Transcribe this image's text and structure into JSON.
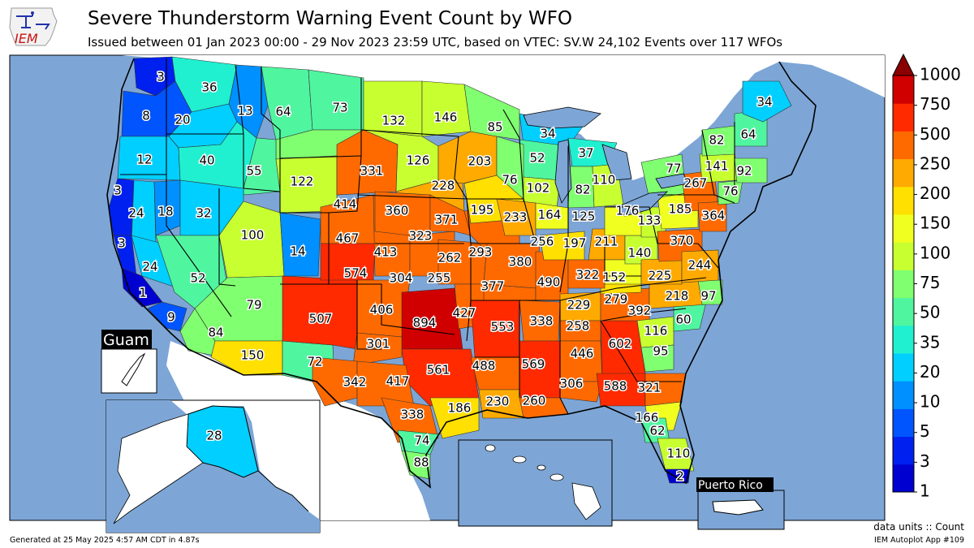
{
  "title": "Severe Thunderstorm Warning Event Count by WFO",
  "subtitle": "Issued between 01 Jan 2023 00:00 - 29 Nov 2023 23:59 UTC, based on VTEC: SV.W   24,102 Events over 117 WFOs",
  "logo_text": "IEM",
  "footer_left": "Generated at 25 May 2025 4:57 AM CDT in 4.87s",
  "footer_units": "data units :: Count",
  "footer_app": "IEM Autoplot App #109",
  "inset_labels": {
    "guam": "Guam",
    "puerto_rico": "Puerto Rico"
  },
  "colors": {
    "ocean": "#7da6d6",
    "land_outside": "#ffffff",
    "lake": "#7da6d6"
  },
  "colorbar": {
    "ticks": [
      "1",
      "3",
      "5",
      "10",
      "20",
      "35",
      "50",
      "75",
      "100",
      "150",
      "200",
      "250",
      "500",
      "750",
      "1000"
    ],
    "colors": [
      "#0000d0",
      "#0020f0",
      "#0055ff",
      "#0090ff",
      "#00cfff",
      "#20f0d0",
      "#50f5a0",
      "#80ff70",
      "#c8ff30",
      "#f0ff20",
      "#ffe000",
      "#ffaa00",
      "#ff6a00",
      "#ff2a00",
      "#d00000"
    ],
    "extend_color": "#8b0000"
  },
  "wfo_counts": [
    {
      "count": "3",
      "color": "#0020f0"
    },
    {
      "count": "36",
      "color": "#20f0d0"
    },
    {
      "count": "8",
      "color": "#0055ff"
    },
    {
      "count": "20",
      "color": "#00cfff"
    },
    {
      "count": "13",
      "color": "#0090ff"
    },
    {
      "count": "64",
      "color": "#50f5a0"
    },
    {
      "count": "73",
      "color": "#50f5a0"
    },
    {
      "count": "132",
      "color": "#c8ff30"
    },
    {
      "count": "146",
      "color": "#c8ff30"
    },
    {
      "count": "85",
      "color": "#80ff70"
    },
    {
      "count": "34",
      "color": "#00cfff"
    },
    {
      "count": "12",
      "color": "#0090ff"
    },
    {
      "count": "40",
      "color": "#20f0d0"
    },
    {
      "count": "55",
      "color": "#50f5a0"
    },
    {
      "count": "122",
      "color": "#c8ff30"
    },
    {
      "count": "331",
      "color": "#ff6a00"
    },
    {
      "count": "126",
      "color": "#c8ff30"
    },
    {
      "count": "203",
      "color": "#ffaa00"
    },
    {
      "count": "52",
      "color": "#50f5a0"
    },
    {
      "count": "37",
      "color": "#20f0d0"
    },
    {
      "count": "76",
      "color": "#80ff70"
    },
    {
      "count": "102",
      "color": "#c8ff30"
    },
    {
      "count": "82",
      "color": "#80ff70"
    },
    {
      "count": "110",
      "color": "#c8ff30"
    },
    {
      "count": "3",
      "color": "#0020f0"
    },
    {
      "count": "24",
      "color": "#00cfff"
    },
    {
      "count": "18",
      "color": "#0090ff"
    },
    {
      "count": "32",
      "color": "#00cfff"
    },
    {
      "count": "414",
      "color": "#ff6a00"
    },
    {
      "count": "360",
      "color": "#ff6a00"
    },
    {
      "count": "228",
      "color": "#ffaa00"
    },
    {
      "count": "371",
      "color": "#ff6a00"
    },
    {
      "count": "195",
      "color": "#ffe000"
    },
    {
      "count": "233",
      "color": "#ffaa00"
    },
    {
      "count": "164",
      "color": "#f0ff20"
    },
    {
      "count": "125",
      "color": "#c8ff30"
    },
    {
      "count": "176",
      "color": "#f0ff20"
    },
    {
      "count": "133",
      "color": "#c8ff30"
    },
    {
      "count": "185",
      "color": "#f0ff20"
    },
    {
      "count": "364",
      "color": "#ff6a00"
    },
    {
      "count": "100",
      "color": "#c8ff30"
    },
    {
      "count": "467",
      "color": "#ff6a00"
    },
    {
      "count": "3",
      "color": "#0020f0"
    },
    {
      "count": "14",
      "color": "#0090ff"
    },
    {
      "count": "413",
      "color": "#ff6a00"
    },
    {
      "count": "323",
      "color": "#ff6a00"
    },
    {
      "count": "293",
      "color": "#ff6a00"
    },
    {
      "count": "256",
      "color": "#ff6a00"
    },
    {
      "count": "197",
      "color": "#ffe000"
    },
    {
      "count": "211",
      "color": "#ffaa00"
    },
    {
      "count": "140",
      "color": "#c8ff30"
    },
    {
      "count": "370",
      "color": "#ff6a00"
    },
    {
      "count": "244",
      "color": "#ffaa00"
    },
    {
      "count": "24",
      "color": "#00cfff"
    },
    {
      "count": "574",
      "color": "#ff2a00"
    },
    {
      "count": "262",
      "color": "#ff6a00"
    },
    {
      "count": "380",
      "color": "#ff6a00"
    },
    {
      "count": "52",
      "color": "#50f5a0"
    },
    {
      "count": "304",
      "color": "#ff6a00"
    },
    {
      "count": "255",
      "color": "#ff6a00"
    },
    {
      "count": "377",
      "color": "#ff6a00"
    },
    {
      "count": "490",
      "color": "#ff6a00"
    },
    {
      "count": "322",
      "color": "#ff6a00"
    },
    {
      "count": "152",
      "color": "#f0ff20"
    },
    {
      "count": "225",
      "color": "#ffaa00"
    },
    {
      "count": "1",
      "color": "#0000d0"
    },
    {
      "count": "79",
      "color": "#80ff70"
    },
    {
      "count": "507",
      "color": "#ff2a00"
    },
    {
      "count": "406",
      "color": "#ff6a00"
    },
    {
      "count": "894",
      "color": "#d00000"
    },
    {
      "count": "427",
      "color": "#ff6a00"
    },
    {
      "count": "279",
      "color": "#ff6a00"
    },
    {
      "count": "392",
      "color": "#ff6a00"
    },
    {
      "count": "218",
      "color": "#ffaa00"
    },
    {
      "count": "97",
      "color": "#80ff70"
    },
    {
      "count": "9",
      "color": "#0055ff"
    },
    {
      "count": "553",
      "color": "#ff2a00"
    },
    {
      "count": "338",
      "color": "#ff6a00"
    },
    {
      "count": "229",
      "color": "#ffaa00"
    },
    {
      "count": "258",
      "color": "#ff6a00"
    },
    {
      "count": "60",
      "color": "#50f5a0"
    },
    {
      "count": "84",
      "color": "#80ff70"
    },
    {
      "count": "301",
      "color": "#ff6a00"
    },
    {
      "count": "116",
      "color": "#c8ff30"
    },
    {
      "count": "602",
      "color": "#ff2a00"
    },
    {
      "count": "446",
      "color": "#ff6a00"
    },
    {
      "count": "150",
      "color": "#ffe000"
    },
    {
      "count": "72",
      "color": "#50f5a0"
    },
    {
      "count": "561",
      "color": "#ff2a00"
    },
    {
      "count": "488",
      "color": "#ff6a00"
    },
    {
      "count": "569",
      "color": "#ff2a00"
    },
    {
      "count": "95",
      "color": "#80ff70"
    },
    {
      "count": "342",
      "color": "#ff6a00"
    },
    {
      "count": "417",
      "color": "#ff6a00"
    },
    {
      "count": "306",
      "color": "#ff6a00"
    },
    {
      "count": "588",
      "color": "#ff2a00"
    },
    {
      "count": "321",
      "color": "#ff6a00"
    },
    {
      "count": "186",
      "color": "#ffe000"
    },
    {
      "count": "230",
      "color": "#ffaa00"
    },
    {
      "count": "260",
      "color": "#ff6a00"
    },
    {
      "count": "338",
      "color": "#ff6a00"
    },
    {
      "count": "166",
      "color": "#f0ff20"
    },
    {
      "count": "62",
      "color": "#50f5a0"
    },
    {
      "count": "74",
      "color": "#50f5a0"
    },
    {
      "count": "110",
      "color": "#c8ff30"
    },
    {
      "count": "88",
      "color": "#80ff70"
    },
    {
      "count": "2",
      "color": "#0000d0"
    },
    {
      "count": "34",
      "color": "#00cfff"
    },
    {
      "count": "64",
      "color": "#50f5a0"
    },
    {
      "count": "82",
      "color": "#80ff70"
    },
    {
      "count": "141",
      "color": "#c8ff30"
    },
    {
      "count": "92",
      "color": "#80ff70"
    },
    {
      "count": "77",
      "color": "#80ff70"
    },
    {
      "count": "267",
      "color": "#ff6a00"
    },
    {
      "count": "76",
      "color": "#80ff70"
    },
    {
      "count": "28",
      "color": "#00cfff"
    }
  ]
}
